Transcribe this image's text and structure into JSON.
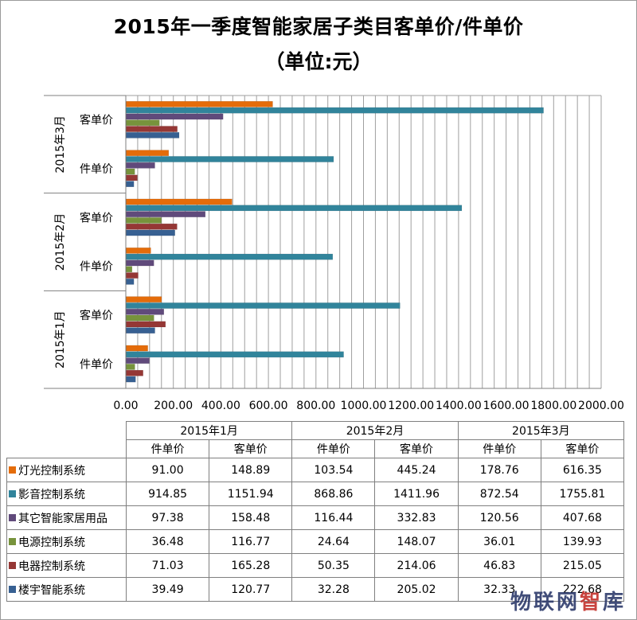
{
  "title": "2015年一季度智能家居子类目客单价/件单价",
  "unit": "（单位:元）",
  "colors": {
    "灯光控制系统": "#e46c0a",
    "影音控制系统": "#31849b",
    "其它智能家居用品": "#604a7b",
    "电源控制系统": "#77933c",
    "电器控制系统": "#953735",
    "楼宇智能系统": "#376092"
  },
  "chart_data": {
    "type": "bar",
    "orientation": "horizontal",
    "xlim": [
      0,
      2000
    ],
    "xticks": [
      "0.00",
      "200.00",
      "400.00",
      "600.00",
      "800.00",
      "1000.00",
      "1200.00",
      "1400.00",
      "1600.00",
      "1800.00",
      "2000.00"
    ],
    "grid": true,
    "months": [
      "2015年1月",
      "2015年2月",
      "2015年3月"
    ],
    "metrics": [
      "件单价",
      "客单价"
    ],
    "series": [
      {
        "name": "灯光控制系统",
        "values": [
          [
            91.0,
            148.89
          ],
          [
            103.54,
            445.24
          ],
          [
            178.76,
            616.35
          ]
        ]
      },
      {
        "name": "影音控制系统",
        "values": [
          [
            914.85,
            1151.94
          ],
          [
            868.86,
            1411.96
          ],
          [
            872.54,
            1755.81
          ]
        ]
      },
      {
        "name": "其它智能家居用品",
        "values": [
          [
            97.38,
            158.48
          ],
          [
            116.44,
            332.83
          ],
          [
            120.56,
            407.68
          ]
        ]
      },
      {
        "name": "电源控制系统",
        "values": [
          [
            36.48,
            116.77
          ],
          [
            24.64,
            148.07
          ],
          [
            36.01,
            139.93
          ]
        ]
      },
      {
        "name": "电器控制系统",
        "values": [
          [
            71.03,
            165.28
          ],
          [
            50.35,
            214.06
          ],
          [
            46.83,
            215.05
          ]
        ]
      },
      {
        "name": "楼宇智能系统",
        "values": [
          [
            39.49,
            120.77
          ],
          [
            32.28,
            205.02
          ],
          [
            32.33,
            222.68
          ]
        ]
      }
    ]
  },
  "table": {
    "rows": [
      {
        "name": "灯光控制系统",
        "cells": [
          "91.00",
          "148.89",
          "103.54",
          "445.24",
          "178.76",
          "616.35"
        ]
      },
      {
        "name": "影音控制系统",
        "cells": [
          "914.85",
          "1151.94",
          "868.86",
          "1411.96",
          "872.54",
          "1755.81"
        ]
      },
      {
        "name": "其它智能家居用品",
        "cells": [
          "97.38",
          "158.48",
          "116.44",
          "332.83",
          "120.56",
          "407.68"
        ]
      },
      {
        "name": "电源控制系统",
        "cells": [
          "36.48",
          "116.77",
          "24.64",
          "148.07",
          "36.01",
          "139.93"
        ]
      },
      {
        "name": "电器控制系统",
        "cells": [
          "71.03",
          "165.28",
          "50.35",
          "214.06",
          "46.83",
          "215.05"
        ]
      },
      {
        "name": "楼宇智能系统",
        "cells": [
          "39.49",
          "120.77",
          "32.28",
          "205.02",
          "32.33",
          "222.68"
        ]
      }
    ]
  },
  "watermark": {
    "part1": "物联网",
    "part2": "智",
    "part3": "库"
  }
}
